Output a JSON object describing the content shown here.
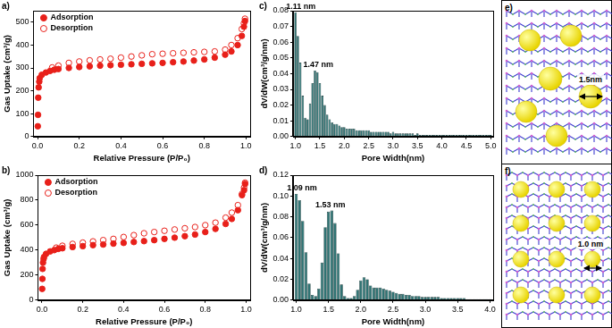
{
  "chart_data": [
    {
      "type": "scatter",
      "title": "a)",
      "x_label": "Relative Pressure (P/P₀)",
      "y_label": "Gas Uptake (cm³/g)",
      "xlim": [
        -0.02,
        1.02
      ],
      "xticks": [
        {
          "value": 0,
          "label": "0.0"
        },
        0.2,
        0.4,
        0.6,
        0.8,
        {
          "value": 1,
          "label": "1.0"
        }
      ],
      "ylim": [
        0,
        550
      ],
      "yticks": [
        0,
        100,
        200,
        300,
        400,
        500
      ],
      "grid": false,
      "legend": "upper left",
      "series": [
        {
          "name": "Adsorption",
          "color": "#e8201a",
          "marker": "circle",
          "line_style": "none",
          "x": [
            0.001,
            0.002,
            0.003,
            0.005,
            0.008,
            0.01,
            0.02,
            0.04,
            0.06,
            0.08,
            0.1,
            0.15,
            0.2,
            0.25,
            0.3,
            0.35,
            0.4,
            0.45,
            0.5,
            0.55,
            0.6,
            0.65,
            0.7,
            0.75,
            0.8,
            0.85,
            0.9,
            0.93,
            0.96,
            0.98,
            0.99,
            0.995
          ],
          "values": [
            45,
            95,
            170,
            215,
            240,
            255,
            270,
            280,
            287,
            292,
            295,
            300,
            304,
            307,
            310,
            312,
            314,
            316,
            318,
            320,
            322,
            325,
            328,
            332,
            337,
            345,
            358,
            372,
            400,
            440,
            480,
            505
          ]
        },
        {
          "name": "Desorption",
          "color": "#e8201a",
          "marker": "open circle",
          "line_style": "none",
          "x": [
            0.995,
            0.99,
            0.98,
            0.96,
            0.93,
            0.9,
            0.85,
            0.8,
            0.75,
            0.7,
            0.65,
            0.6,
            0.55,
            0.5,
            0.45,
            0.4,
            0.35,
            0.3,
            0.25,
            0.2,
            0.15,
            0.1,
            0.07
          ],
          "values": [
            515,
            495,
            470,
            430,
            400,
            380,
            372,
            370,
            368,
            366,
            364,
            362,
            360,
            355,
            350,
            345,
            340,
            337,
            333,
            328,
            322,
            310,
            302
          ]
        }
      ]
    },
    {
      "type": "scatter",
      "title": "b)",
      "x_label": "Relative Pressure (P/P₀)",
      "y_label": "Gas Uptake (cm³/g)",
      "xlim": [
        -0.02,
        1.02
      ],
      "xticks": [
        {
          "value": 0,
          "label": "0.0"
        },
        0.2,
        0.4,
        0.6,
        0.8,
        {
          "value": 1,
          "label": "1.0"
        }
      ],
      "ylim": [
        0,
        1000
      ],
      "yticks": [
        0,
        200,
        400,
        600,
        800,
        1000
      ],
      "grid": false,
      "legend": "upper left",
      "series": [
        {
          "name": "Adsorption",
          "color": "#e8201a",
          "marker": "circle",
          "line_style": "none",
          "x": [
            0.001,
            0.002,
            0.003,
            0.005,
            0.008,
            0.01,
            0.02,
            0.04,
            0.06,
            0.08,
            0.1,
            0.15,
            0.2,
            0.25,
            0.3,
            0.35,
            0.4,
            0.45,
            0.5,
            0.55,
            0.6,
            0.65,
            0.7,
            0.75,
            0.8,
            0.85,
            0.9,
            0.93,
            0.96,
            0.98,
            0.99,
            0.995
          ],
          "values": [
            90,
            170,
            250,
            300,
            330,
            345,
            370,
            390,
            400,
            410,
            415,
            425,
            432,
            440,
            445,
            452,
            458,
            465,
            472,
            480,
            490,
            500,
            512,
            525,
            545,
            570,
            610,
            650,
            720,
            840,
            880,
            930
          ]
        },
        {
          "name": "Desorption",
          "color": "#e8201a",
          "marker": "open circle",
          "line_style": "none",
          "x": [
            0.995,
            0.99,
            0.98,
            0.96,
            0.93,
            0.9,
            0.85,
            0.8,
            0.75,
            0.7,
            0.65,
            0.6,
            0.55,
            0.5,
            0.45,
            0.4,
            0.35,
            0.3,
            0.25,
            0.2,
            0.15,
            0.1,
            0.07
          ],
          "values": [
            940,
            900,
            850,
            760,
            700,
            660,
            620,
            600,
            585,
            575,
            565,
            555,
            545,
            535,
            520,
            505,
            490,
            480,
            470,
            460,
            450,
            435,
            420
          ]
        }
      ]
    },
    {
      "type": "bar",
      "title": "c)",
      "x_label": "Pore Width(nm)",
      "y_label": "dV/dW(cm³/g/nm)",
      "xlim": [
        0.95,
        5.05
      ],
      "xticks": [
        {
          "value": 1,
          "label": "1.0"
        },
        1.5,
        {
          "value": 2,
          "label": "2.0"
        },
        2.5,
        {
          "value": 3,
          "label": "3.0"
        },
        3.5,
        {
          "value": 4,
          "label": "4.0"
        },
        4.5,
        {
          "value": 5,
          "label": "5.0"
        }
      ],
      "ylim": [
        0,
        0.08
      ],
      "yticks": [
        {
          "value": 0,
          "label": "0.00"
        },
        0.01,
        0.02,
        0.03,
        0.04,
        0.05,
        0.06,
        0.07,
        0.08
      ],
      "grid": false,
      "color": "#2f7373",
      "x": [
        1.0,
        1.05,
        1.1,
        1.15,
        1.2,
        1.25,
        1.3,
        1.35,
        1.4,
        1.45,
        1.5,
        1.55,
        1.6,
        1.65,
        1.7,
        1.75,
        1.8,
        1.85,
        1.9,
        1.95,
        2.0,
        2.05,
        2.1,
        2.15,
        2.2,
        2.25,
        2.3,
        2.35,
        2.4,
        2.45,
        2.5,
        2.55,
        2.6,
        2.65,
        2.7,
        2.75,
        2.8,
        2.85,
        2.9,
        2.95,
        3.0,
        3.05,
        3.1,
        3.15,
        3.2,
        3.25,
        3.3,
        3.35,
        3.4,
        3.45,
        3.5,
        3.55,
        3.6,
        3.65,
        3.7,
        3.75,
        3.8,
        3.85,
        3.9,
        3.95,
        4.0,
        4.05,
        4.1,
        4.15,
        4.2,
        4.25,
        4.3,
        4.35,
        4.4,
        4.45,
        4.5,
        4.55,
        4.6,
        4.65,
        4.7,
        4.75,
        4.8,
        4.85,
        4.9,
        4.95,
        5.0
      ],
      "values": [
        0.079,
        0.064,
        0.047,
        0.026,
        0.012,
        0.011,
        0.021,
        0.034,
        0.042,
        0.041,
        0.034,
        0.026,
        0.02,
        0.014,
        0.011,
        0.009,
        0.008,
        0.008,
        0.007,
        0.006,
        0.006,
        0.005,
        0.005,
        0.005,
        0.005,
        0.004,
        0.004,
        0.004,
        0.004,
        0.004,
        0.004,
        0.003,
        0.003,
        0.003,
        0.003,
        0.003,
        0.003,
        0.003,
        0.003,
        0.002,
        0.003,
        0.002,
        0.002,
        0.002,
        0.002,
        0.002,
        0.002,
        0.002,
        0.002,
        0.001,
        0.002,
        0.001,
        0.001,
        0.001,
        0.001,
        0.001,
        0.001,
        0.001,
        0.001,
        0.001,
        0.001,
        0.001,
        0.001,
        0.001,
        0.001,
        0.001,
        0.001,
        0.001,
        0.001,
        0.001,
        0.001,
        0.001,
        0.001,
        0.001,
        0.001,
        0.001,
        0.001,
        0.001,
        0.001,
        0.001,
        0.001
      ],
      "annotations": [
        {
          "text": "1.11 nm",
          "x": 1.11
        },
        {
          "text": "1.47 nm",
          "x": 1.47
        }
      ]
    },
    {
      "type": "bar",
      "title": "d)",
      "x_label": "Pore Width(nm)",
      "y_label": "dV/dW(cm³/g/nm)",
      "xlim": [
        0.95,
        4.05
      ],
      "xticks": [
        {
          "value": 1,
          "label": "1.0"
        },
        1.5,
        {
          "value": 2,
          "label": "2.0"
        },
        2.5,
        {
          "value": 3,
          "label": "3.0"
        },
        3.5,
        {
          "value": 4,
          "label": "4.0"
        }
      ],
      "ylim": [
        0,
        0.12
      ],
      "yticks": [
        {
          "value": 0,
          "label": "0.00"
        },
        0.02,
        0.04,
        0.06,
        0.08,
        {
          "value": 0.1,
          "label": "0.10"
        },
        0.12
      ],
      "grid": false,
      "color": "#2f7373",
      "x": [
        1.0,
        1.05,
        1.1,
        1.15,
        1.2,
        1.25,
        1.3,
        1.35,
        1.4,
        1.45,
        1.5,
        1.55,
        1.6,
        1.65,
        1.7,
        1.75,
        1.8,
        1.85,
        1.9,
        1.95,
        2.0,
        2.05,
        2.1,
        2.15,
        2.2,
        2.25,
        2.3,
        2.35,
        2.4,
        2.45,
        2.5,
        2.55,
        2.6,
        2.65,
        2.7,
        2.75,
        2.8,
        2.85,
        2.9,
        2.95,
        3.0,
        3.05,
        3.1,
        3.15,
        3.2,
        3.25,
        3.3,
        3.35,
        3.4,
        3.45,
        3.5,
        3.55,
        3.6,
        3.65,
        3.7,
        3.75,
        3.8,
        3.85,
        3.9,
        3.95,
        4.0
      ],
      "values": [
        0.102,
        0.096,
        0.076,
        0.046,
        0.016,
        0.005,
        0.004,
        0.011,
        0.036,
        0.07,
        0.085,
        0.086,
        0.074,
        0.045,
        0.015,
        0.004,
        0.002,
        0.002,
        0.004,
        0.01,
        0.019,
        0.022,
        0.02,
        0.014,
        0.012,
        0.012,
        0.012,
        0.011,
        0.01,
        0.009,
        0.008,
        0.007,
        0.006,
        0.006,
        0.005,
        0.005,
        0.004,
        0.004,
        0.004,
        0.003,
        0.003,
        0.003,
        0.003,
        0.003,
        0.003,
        0.002,
        0.002,
        0.002,
        0.002,
        0.002,
        0.002,
        0.002,
        0.002,
        0.001,
        0.001,
        0.001,
        0.001,
        0.001,
        0.001,
        0.001,
        0.001
      ],
      "annotations": [
        {
          "text": "1.09 nm",
          "x": 1.09
        },
        {
          "text": "1.53 nm",
          "x": 1.53
        }
      ]
    }
  ],
  "diagrams": [
    {
      "panel": "e)",
      "label": "1.5nm"
    },
    {
      "panel": "f)",
      "label": "1.0 nm"
    }
  ]
}
